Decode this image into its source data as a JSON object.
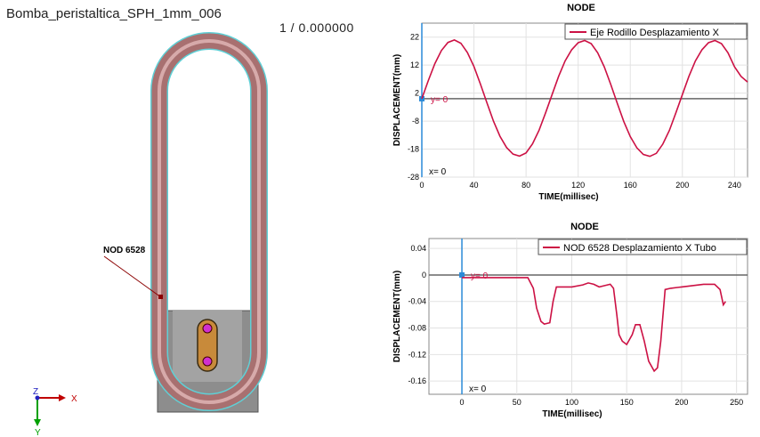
{
  "window": {
    "title": "Bomba_peristaltica_SPH_1mm_006",
    "frame": "1  /  0.000000"
  },
  "scene": {
    "node_label": "NOD  6528",
    "axis_x": "X",
    "axis_y": "Y",
    "axis_z": "Z",
    "colors": {
      "tube": "#b07a7a",
      "tube_outline": "#5fd0d6",
      "housing": "#8a8a8a",
      "housing_light": "#a9a9a9",
      "link": "#c88a3a",
      "pin": "#d030d0",
      "node_marker": "#8b0000"
    }
  },
  "chart_data": [
    {
      "type": "line",
      "title": "NODE",
      "xlabel": "TIME(millisec)",
      "ylabel": "DISPLACEMENT(mm)",
      "xlim": [
        0,
        250
      ],
      "ylim": [
        -28,
        27
      ],
      "xticks": [
        "0",
        "40",
        "80",
        "120",
        "160",
        "200",
        "240"
      ],
      "xtick_values": [
        0,
        40,
        80,
        120,
        160,
        200,
        240
      ],
      "yticks": [
        "22",
        "12",
        "2",
        "-8",
        "-18",
        "-28"
      ],
      "ytick_values": [
        22,
        12,
        2,
        -8,
        -18,
        -28
      ],
      "grid": true,
      "legend": "top-right",
      "ref_y_label": "y= 0",
      "ref_x_label": "x= 0",
      "series": [
        {
          "name": "Eje Rodillo Desplazamiento X",
          "color": "#cc1144",
          "x": [
            0,
            5,
            10,
            15,
            20,
            25,
            30,
            35,
            40,
            45,
            50,
            55,
            60,
            65,
            70,
            75,
            80,
            85,
            90,
            95,
            100,
            105,
            110,
            115,
            120,
            125,
            130,
            135,
            140,
            145,
            150,
            155,
            160,
            165,
            170,
            175,
            180,
            185,
            190,
            195,
            200,
            205,
            210,
            215,
            220,
            225,
            230,
            235,
            240,
            245,
            250
          ],
          "y": [
            0,
            6.5,
            12.5,
            17.2,
            20.1,
            21,
            19.8,
            16.5,
            11.5,
            5.2,
            -1.5,
            -8,
            -13.4,
            -17.4,
            -19.8,
            -20.5,
            -19.4,
            -16.1,
            -11.2,
            -5,
            1.5,
            8,
            13.5,
            17.5,
            20,
            20.8,
            19.7,
            16.4,
            11.4,
            5.1,
            -1.6,
            -8.1,
            -13.5,
            -17.5,
            -19.9,
            -20.6,
            -19.5,
            -16.2,
            -11.3,
            -5,
            1.5,
            8,
            13.5,
            17.5,
            20,
            20.8,
            19.7,
            16.4,
            11.4,
            8,
            6
          ]
        }
      ]
    },
    {
      "type": "line",
      "title": "NODE",
      "xlabel": "TIME(millisec)",
      "ylabel": "DISPLACEMENT(mm)",
      "xlim": [
        -30,
        260
      ],
      "ylim": [
        -0.18,
        0.055
      ],
      "xticks": [
        "0",
        "50",
        "100",
        "150",
        "200",
        "250"
      ],
      "xtick_values": [
        0,
        50,
        100,
        150,
        200,
        250
      ],
      "yticks": [
        "0.04",
        "0",
        "-0.04",
        "-0.08",
        "-0.12",
        "-0.16"
      ],
      "ytick_values": [
        0.04,
        0,
        -0.04,
        -0.08,
        -0.12,
        -0.16
      ],
      "grid": true,
      "legend": "top-right",
      "ref_y_label": "y= 0",
      "ref_x_label": "x= 0",
      "series": [
        {
          "name": "NOD 6528 Desplazamiento X Tubo",
          "color": "#cc1144",
          "x": [
            0,
            10,
            20,
            30,
            40,
            50,
            60,
            65,
            68,
            72,
            75,
            80,
            83,
            86,
            90,
            100,
            110,
            115,
            120,
            125,
            130,
            135,
            138,
            141,
            143,
            146,
            150,
            155,
            158,
            162,
            166,
            170,
            175,
            178,
            181,
            185,
            190,
            200,
            210,
            220,
            230,
            235,
            238,
            240
          ],
          "y": [
            -0.004,
            -0.004,
            -0.004,
            -0.004,
            -0.004,
            -0.004,
            -0.004,
            -0.02,
            -0.05,
            -0.07,
            -0.074,
            -0.072,
            -0.04,
            -0.018,
            -0.018,
            -0.018,
            -0.015,
            -0.012,
            -0.014,
            -0.018,
            -0.016,
            -0.014,
            -0.02,
            -0.06,
            -0.09,
            -0.1,
            -0.105,
            -0.09,
            -0.075,
            -0.075,
            -0.1,
            -0.13,
            -0.145,
            -0.14,
            -0.1,
            -0.022,
            -0.02,
            -0.018,
            -0.016,
            -0.014,
            -0.014,
            -0.022,
            -0.045,
            -0.04
          ]
        }
      ]
    }
  ]
}
